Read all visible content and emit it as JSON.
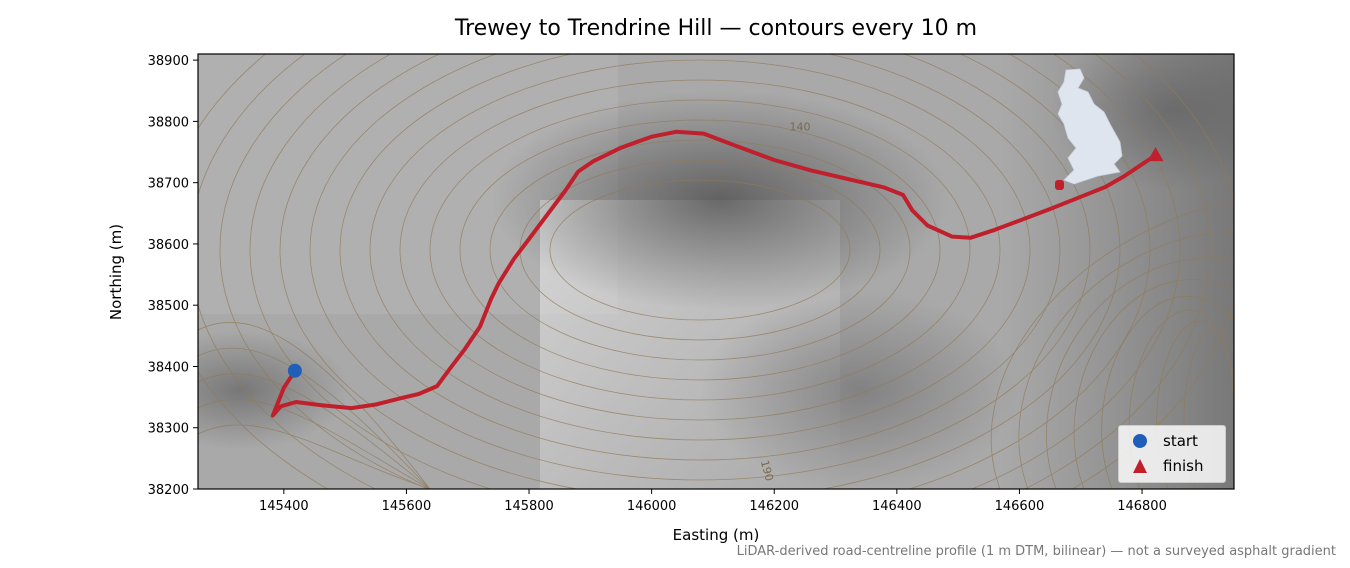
{
  "chart_data": {
    "type": "line",
    "title": "Trewey to Trendrine Hill — contours every 10 m",
    "xlabel": "Easting (m)",
    "ylabel": "Northing (m)",
    "xlim": [
      145260,
      146950
    ],
    "ylim": [
      38200,
      38910
    ],
    "xticks": [
      145400,
      145600,
      145800,
      146000,
      146200,
      146400,
      146600,
      146800
    ],
    "yticks": [
      38200,
      38300,
      38400,
      38500,
      38600,
      38700,
      38800,
      38900
    ],
    "grid": false,
    "legend_position": "lower right",
    "series": [
      {
        "name": "route",
        "color": "#c0202c",
        "x": [
          145418,
          145400,
          145382,
          145395,
          145420,
          145460,
          145510,
          145550,
          145590,
          145620,
          145650,
          145670,
          145695,
          145720,
          145738,
          145750,
          145775,
          145800,
          145830,
          145860,
          145880,
          145905,
          145950,
          146000,
          146040,
          146085,
          146130,
          146200,
          146260,
          146320,
          146380,
          146410,
          146425,
          146450,
          146490,
          146520,
          146560,
          146600,
          146650,
          146700,
          146740,
          146770,
          146800,
          146822
        ],
        "y": [
          38393,
          38365,
          38320,
          38335,
          38342,
          38337,
          38332,
          38338,
          38348,
          38355,
          38368,
          38395,
          38428,
          38465,
          38510,
          38535,
          38575,
          38608,
          38648,
          38688,
          38718,
          38735,
          38757,
          38775,
          38783,
          38780,
          38763,
          38737,
          38720,
          38706,
          38692,
          38680,
          38655,
          38630,
          38612,
          38610,
          38623,
          38638,
          38657,
          38677,
          38693,
          38710,
          38730,
          38745
        ]
      }
    ],
    "markers": [
      {
        "name": "start",
        "x": 145418,
        "y": 38393,
        "shape": "circle",
        "color": "#1f5fb8"
      },
      {
        "name": "finish",
        "x": 146822,
        "y": 38745,
        "shape": "triangle",
        "color": "#c0202c"
      }
    ],
    "contour_labels": [
      {
        "text": "140",
        "x": 146225,
        "y": 38785
      },
      {
        "text": "190",
        "x": 146178,
        "y": 38245
      }
    ],
    "inset": {
      "name": "uk-location-map",
      "fill": "#dfe5ef",
      "marker_color": "#c0202c"
    },
    "colors": {
      "background": "#ffffff",
      "hillshade": "#a8a8a8",
      "contour": "#8f7b58"
    },
    "footnote": "LiDAR-derived road-centreline profile (1 m DTM, bilinear) — not a surveyed asphalt gradient"
  }
}
